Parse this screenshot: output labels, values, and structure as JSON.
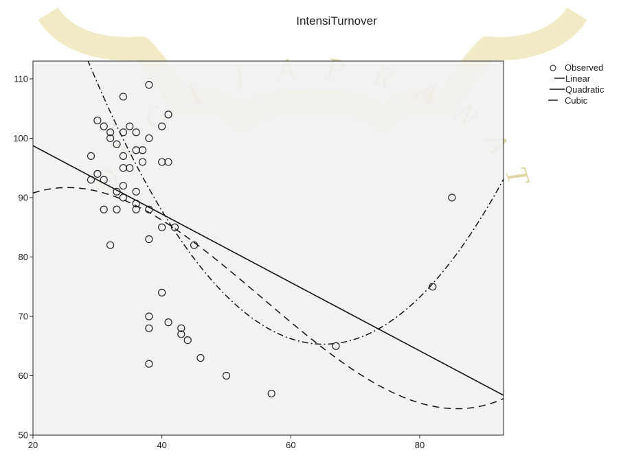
{
  "chart_data": {
    "type": "scatter",
    "title": "IntensiTurnover",
    "xlabel": "",
    "ylabel": "",
    "xlim": [
      20,
      93
    ],
    "ylim": [
      50,
      113
    ],
    "xticks": [
      "20",
      "40",
      "60",
      "80"
    ],
    "yticks": [
      "50",
      "60",
      "70",
      "80",
      "90",
      "100",
      "110"
    ],
    "grid": false,
    "legend_position": "right",
    "series": [
      {
        "name": "Observed",
        "kind": "points",
        "points": [
          [
            29,
            97
          ],
          [
            29,
            93
          ],
          [
            30,
            103
          ],
          [
            30,
            94
          ],
          [
            31,
            102
          ],
          [
            31,
            93
          ],
          [
            31,
            88
          ],
          [
            32,
            101
          ],
          [
            32,
            100
          ],
          [
            32,
            82
          ],
          [
            33,
            99
          ],
          [
            33,
            91
          ],
          [
            33,
            88
          ],
          [
            34,
            107
          ],
          [
            34,
            101
          ],
          [
            34,
            97
          ],
          [
            34,
            95
          ],
          [
            34,
            92
          ],
          [
            34,
            90
          ],
          [
            35,
            102
          ],
          [
            35,
            95
          ],
          [
            36,
            101
          ],
          [
            36,
            98
          ],
          [
            36,
            91
          ],
          [
            36,
            89
          ],
          [
            36,
            88
          ],
          [
            37,
            98
          ],
          [
            37,
            96
          ],
          [
            38,
            109
          ],
          [
            38,
            100
          ],
          [
            38,
            88
          ],
          [
            38,
            83
          ],
          [
            38,
            70
          ],
          [
            38,
            68
          ],
          [
            38,
            62
          ],
          [
            40,
            102
          ],
          [
            40,
            96
          ],
          [
            40,
            85
          ],
          [
            40,
            74
          ],
          [
            41,
            104
          ],
          [
            41,
            96
          ],
          [
            41,
            69
          ],
          [
            42,
            85
          ],
          [
            43,
            68
          ],
          [
            43,
            67
          ],
          [
            44,
            66
          ],
          [
            45,
            82
          ],
          [
            46,
            63
          ],
          [
            50,
            60
          ],
          [
            57,
            57
          ],
          [
            67,
            65
          ],
          [
            82,
            75
          ],
          [
            85,
            90
          ]
        ]
      },
      {
        "name": "Linear",
        "kind": "curve",
        "coef": [
          110.27,
          -0.576,
          0,
          0
        ]
      },
      {
        "name": "Quadratic",
        "kind": "curve",
        "coef": [
          216.6,
          -4.648,
          0.0357,
          0
        ]
      },
      {
        "name": "Cubic",
        "kind": "curve",
        "coef": [
          66.55,
          2.2,
          -0.0562,
          0.000337
        ]
      }
    ]
  },
  "watermark": {
    "letters": [
      "O",
      "E",
      "G",
      "I",
      "J",
      "A",
      "P",
      "R",
      "A",
      "N",
      "A",
      "T"
    ]
  }
}
